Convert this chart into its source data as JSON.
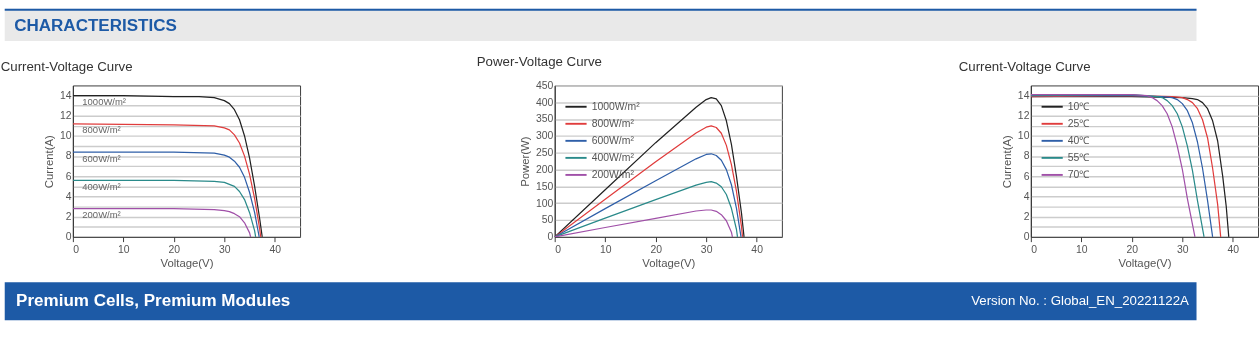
{
  "chart_data": [
    {
      "type": "line",
      "title": "Current-Voltage Curve",
      "xlabel": "Voltage(V)",
      "ylabel": "Current(A)",
      "annotations": [
        "CHARACTERISTICS"
      ],
      "xlim": [
        0,
        45
      ],
      "xticks": [
        0,
        10,
        20,
        30,
        40
      ],
      "ylim": [
        0,
        15
      ],
      "yticks": [
        0,
        {
          "value": 1,
          "label": null
        },
        2,
        {
          "value": 3,
          "label": null
        },
        4,
        {
          "value": 5,
          "label": null
        },
        6,
        {
          "value": 7,
          "label": null
        },
        8,
        {
          "value": 9,
          "label": null
        },
        10,
        {
          "value": 11,
          "label": null
        },
        12,
        {
          "value": 13,
          "label": null
        },
        14
      ],
      "grid": "y",
      "legend": false,
      "series": [
        {
          "name": "1000W/m²",
          "color": "#222222",
          "x": [
            0,
            10,
            20,
            25,
            28,
            30,
            31,
            32,
            33,
            34,
            35,
            36,
            37,
            37.5
          ],
          "values": [
            14.0,
            14.0,
            13.9,
            13.9,
            13.8,
            13.5,
            13.2,
            12.6,
            11.6,
            10.0,
            7.8,
            5.0,
            1.8,
            0
          ]
        },
        {
          "name": "800W/m²",
          "color": "#e03c3c",
          "x": [
            0,
            20,
            28,
            30,
            31,
            32,
            33,
            34,
            35,
            36,
            37,
            37.2
          ],
          "values": [
            11.2,
            11.1,
            11.0,
            10.8,
            10.6,
            10.1,
            9.3,
            8.0,
            6.2,
            3.8,
            0.8,
            0
          ]
        },
        {
          "name": "600W/m²",
          "color": "#2f5fa8",
          "x": [
            0,
            20,
            28,
            30,
            31,
            32,
            33,
            34,
            35,
            36,
            36.9
          ],
          "values": [
            8.4,
            8.4,
            8.3,
            8.1,
            7.9,
            7.5,
            6.9,
            5.9,
            4.4,
            2.4,
            0
          ]
        },
        {
          "name": "400W/m²",
          "color": "#2a8a8a",
          "x": [
            0,
            20,
            28,
            30,
            31,
            32,
            33,
            34,
            35,
            36,
            36.2
          ],
          "values": [
            5.6,
            5.6,
            5.5,
            5.4,
            5.2,
            5.0,
            4.5,
            3.7,
            2.4,
            0.6,
            0
          ]
        },
        {
          "name": "200W/m²",
          "color": "#a050a8",
          "x": [
            0,
            20,
            28,
            30,
            31,
            32,
            33,
            34,
            35,
            35.2
          ],
          "values": [
            2.8,
            2.8,
            2.7,
            2.6,
            2.5,
            2.3,
            2.0,
            1.4,
            0.4,
            0
          ]
        }
      ]
    },
    {
      "type": "line",
      "title": "Power-Voltage Curve",
      "xlabel": "Voltage(V)",
      "ylabel": "Power(W)",
      "xlim": [
        0,
        45
      ],
      "xticks": [
        0,
        10,
        20,
        30,
        40
      ],
      "ylim": [
        0,
        450
      ],
      "yticks": [
        0,
        50,
        100,
        150,
        200,
        250,
        300,
        350,
        400,
        450
      ],
      "grid": "y",
      "legend": "top left",
      "series": [
        {
          "name": "1000W/m²",
          "color": "#222222",
          "x": [
            0,
            10,
            20,
            28,
            30,
            31,
            32,
            33,
            34,
            35,
            36,
            37,
            37.5
          ],
          "values": [
            0,
            140,
            280,
            385,
            408,
            414,
            410,
            390,
            345,
            275,
            180,
            70,
            0
          ]
        },
        {
          "name": "800W/m²",
          "color": "#e03c3c",
          "x": [
            0,
            10,
            20,
            28,
            30,
            31,
            32,
            33,
            34,
            35,
            36,
            37,
            37.2
          ],
          "values": [
            0,
            112,
            223,
            309,
            326,
            330,
            325,
            308,
            272,
            215,
            135,
            30,
            0
          ]
        },
        {
          "name": "600W/m²",
          "color": "#2f5fa8",
          "x": [
            0,
            10,
            20,
            28,
            30,
            31,
            32,
            33,
            34,
            35,
            36,
            36.9
          ],
          "values": [
            0,
            84,
            167,
            232,
            245,
            247,
            242,
            228,
            200,
            155,
            85,
            0
          ]
        },
        {
          "name": "400W/m²",
          "color": "#2a8a8a",
          "x": [
            0,
            10,
            20,
            28,
            30,
            31,
            32,
            33,
            34,
            35,
            36,
            36.2
          ],
          "values": [
            0,
            56,
            111,
            154,
            162,
            164,
            160,
            149,
            126,
            85,
            22,
            0
          ]
        },
        {
          "name": "200W/m²",
          "color": "#a050a8",
          "x": [
            0,
            10,
            20,
            28,
            30,
            31,
            32,
            33,
            34,
            35,
            35.2
          ],
          "values": [
            0,
            28,
            55,
            77,
            80,
            80,
            76,
            66,
            48,
            14,
            0
          ]
        }
      ]
    },
    {
      "type": "line",
      "title": "Current-Voltage Curve",
      "xlabel": "Voltage(V)",
      "ylabel": "Current(A)",
      "annotations": [
        "Premium Cells, Premium Modules",
        "Version No. : Global_EN_20221122A"
      ],
      "xlim": [
        0,
        45
      ],
      "xticks": [
        0,
        10,
        20,
        30,
        40
      ],
      "ylim": [
        0,
        15
      ],
      "yticks": [
        0,
        {
          "value": 1,
          "label": null
        },
        2,
        {
          "value": 3,
          "label": null
        },
        4,
        {
          "value": 5,
          "label": null
        },
        6,
        {
          "value": 7,
          "label": null
        },
        8,
        {
          "value": 9,
          "label": null
        },
        10,
        {
          "value": 11,
          "label": null
        },
        12,
        {
          "value": 13,
          "label": null
        },
        14
      ],
      "grid": "y",
      "legend": "top left",
      "series": [
        {
          "name": "10℃",
          "color": "#222222",
          "x": [
            0,
            20,
            30,
            32,
            33,
            34,
            35,
            36,
            37,
            38,
            38.7,
            39.2
          ],
          "values": [
            13.9,
            13.9,
            13.8,
            13.7,
            13.6,
            13.3,
            12.7,
            11.5,
            9.5,
            6.0,
            3.0,
            0
          ]
        },
        {
          "name": "25℃",
          "color": "#e03c3c",
          "x": [
            0,
            20,
            28,
            30,
            31,
            32,
            33,
            34,
            35,
            36,
            37,
            37.6
          ],
          "values": [
            13.9,
            14.0,
            13.9,
            13.8,
            13.6,
            13.3,
            12.7,
            11.6,
            9.8,
            6.8,
            3.2,
            0
          ]
        },
        {
          "name": "40℃",
          "color": "#2f5fa8",
          "x": [
            0,
            20,
            26,
            28,
            29,
            30,
            31,
            32,
            33,
            34,
            35,
            36
          ],
          "values": [
            14.0,
            14.0,
            13.9,
            13.8,
            13.6,
            13.2,
            12.5,
            11.3,
            9.4,
            6.8,
            3.6,
            0
          ]
        },
        {
          "name": "55℃",
          "color": "#2a8a8a",
          "x": [
            0,
            20,
            25,
            26,
            27,
            28,
            29,
            30,
            31,
            32,
            33,
            34.3
          ],
          "values": [
            14.0,
            14.1,
            13.9,
            13.8,
            13.5,
            13.0,
            12.2,
            10.9,
            9.0,
            6.6,
            3.6,
            0
          ]
        },
        {
          "name": "70℃",
          "color": "#a050a8",
          "x": [
            0,
            20,
            23,
            24,
            25,
            26,
            27,
            28,
            29,
            30,
            31,
            32.5
          ],
          "values": [
            14.1,
            14.1,
            14.0,
            13.8,
            13.5,
            13.0,
            12.2,
            10.9,
            9.0,
            6.7,
            3.8,
            0
          ]
        }
      ]
    }
  ]
}
